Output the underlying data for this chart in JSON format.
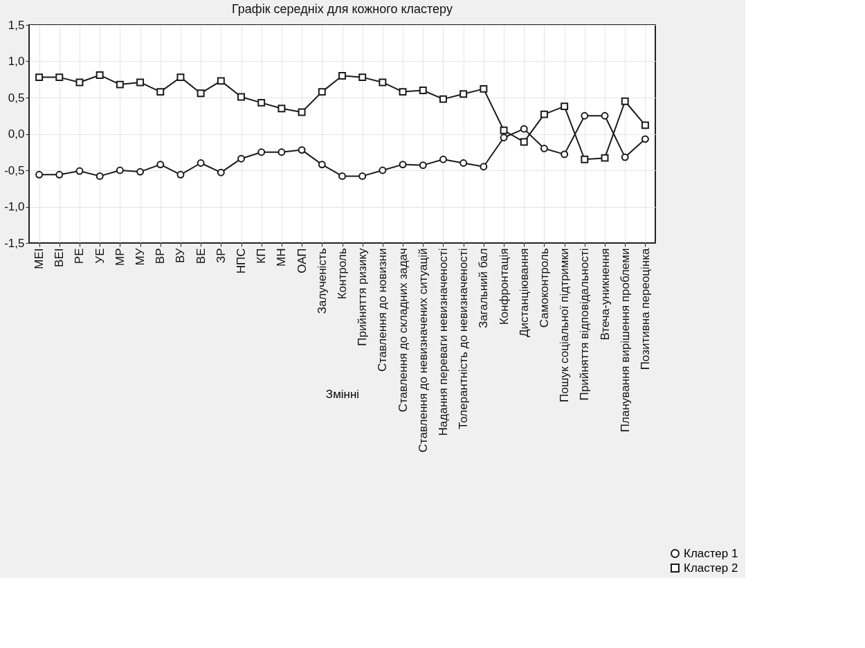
{
  "chart_data": {
    "type": "line",
    "title": "Графік середніх для кожного кластеру",
    "xlabel": "Змінні",
    "categories": [
      "МЕІ",
      "ВЕІ",
      "РЕ",
      "УЕ",
      "МР",
      "МУ",
      "ВР",
      "ВУ",
      "ВЕ",
      "ЗР",
      "НПС",
      "КП",
      "МН",
      "ОАП",
      "Залученість",
      "Контроль",
      "Прийняття ризику",
      "Ставлення до новизни",
      "Ставлення до складних задач",
      "Ставлення до невизначених ситуацій",
      "Надання переваги невизначеності",
      "Толерантність до невизначеності",
      "Загальний бал",
      "Конфронтація",
      "Дистанціювання",
      "Самоконтроль",
      "Пошук соціальної підтримки",
      "Прийняття відповідальності",
      "Втеча-уникнення",
      "Планування вирішення проблеми",
      "Позитивна переоцінка"
    ],
    "series": [
      {
        "name": "Кластер  1",
        "color": "#1a1a1a",
        "marker": "circle",
        "values": [
          -0.56,
          -0.56,
          -0.51,
          -0.58,
          -0.5,
          -0.52,
          -0.42,
          -0.56,
          -0.4,
          -0.53,
          -0.34,
          -0.25,
          -0.25,
          -0.22,
          -0.42,
          -0.58,
          -0.58,
          -0.5,
          -0.42,
          -0.43,
          -0.35,
          -0.4,
          -0.45,
          -0.05,
          0.07,
          -0.2,
          -0.28,
          0.25,
          0.25,
          -0.32,
          -0.07
        ]
      },
      {
        "name": "Кластер  2",
        "color": "#1a1a1a",
        "marker": "square",
        "values": [
          0.78,
          0.78,
          0.71,
          0.81,
          0.68,
          0.71,
          0.58,
          0.78,
          0.56,
          0.73,
          0.51,
          0.43,
          0.35,
          0.3,
          0.58,
          0.8,
          0.78,
          0.71,
          0.58,
          0.6,
          0.48,
          0.55,
          0.62,
          0.05,
          -0.11,
          0.27,
          0.38,
          -0.35,
          -0.33,
          0.45,
          0.12
        ]
      }
    ],
    "ylim": [
      -1.5,
      1.5
    ],
    "yticks": [
      {
        "value": -1.5,
        "label": "-1,5"
      },
      {
        "value": -1.0,
        "label": "-1,0"
      },
      {
        "value": -0.5,
        "label": "-0,5"
      },
      {
        "value": 0,
        "label": "0,0"
      },
      {
        "value": 0.5,
        "label": "0,5"
      },
      {
        "value": 1.0,
        "label": "1,0"
      },
      {
        "value": 1.5,
        "label": "1,5"
      }
    ],
    "grid": true,
    "legend": "bottom right",
    "line_style": "solid"
  }
}
